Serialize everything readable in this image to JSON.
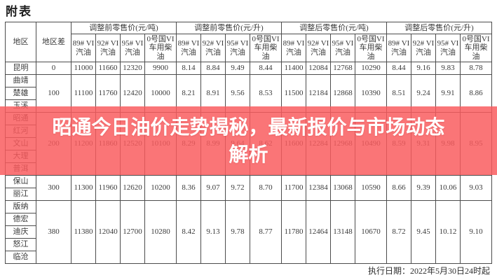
{
  "title": "附表",
  "banner": {
    "line1": "昭通今日油价走势揭秘，最新报价与市场动态",
    "line2": "解析",
    "background_color": "#f95d60",
    "text_color": "#ffffff"
  },
  "footer": {
    "execution_date": "执行日期：2022年5月30日24时起"
  },
  "table": {
    "region_header": "地区",
    "diff_header": "地区差",
    "group_headers": [
      "调整前零售价(元/吨)",
      "调整前零售价(元/升)",
      "调整后零售价(元/吨)",
      "调整后零售价(元/升)"
    ],
    "product_headers": [
      "89# VI汽油",
      "92# VI汽油",
      "95# VI汽油",
      "0号国VI 车用柴油"
    ],
    "row_groups": [
      {
        "regions": [
          "昆明"
        ],
        "diff": "0",
        "values": [
          "11000",
          "11660",
          "12320",
          "9900",
          "8.14",
          "8.84",
          "9.49",
          "8.44",
          "11400",
          "12084",
          "12768",
          "10290",
          "8.44",
          "9.16",
          "9.83",
          "8.78"
        ]
      },
      {
        "regions": [
          "曲靖",
          "楚雄",
          "玉溪"
        ],
        "diff": "100",
        "values": [
          "11100",
          "11760",
          "12420",
          "10000",
          "8.21",
          "8.91",
          "9.56",
          "8.53",
          "11500",
          "12184",
          "12868",
          "10390",
          "8.51",
          "9.24",
          "9.91",
          "8.86"
        ]
      },
      {
        "regions": [
          "昭通",
          "红河",
          "文山",
          "大理",
          "普洱"
        ],
        "diff": "200",
        "values": [
          "11200",
          "11860",
          "12520",
          "10100",
          "8.29",
          "8.99",
          "9.64",
          "8.62",
          "11600",
          "12284",
          "12968",
          "10490",
          "8.59",
          "9.31",
          "9.98",
          "8.95"
        ]
      },
      {
        "regions": [
          "保山",
          "丽江"
        ],
        "diff": "300",
        "values": [
          "11300",
          "11960",
          "12620",
          "10200",
          "8.36",
          "9.07",
          "9.72",
          "8.70",
          "11700",
          "12384",
          "13068",
          "10590",
          "8.66",
          "9.39",
          "10.06",
          "9.03"
        ]
      },
      {
        "regions": [
          "版纳",
          "德宏",
          "迪庆",
          "怒江",
          "临沧"
        ],
        "diff": "380",
        "values": [
          "11380",
          "12040",
          "12700",
          "10280",
          "8.42",
          "9.13",
          "9.78",
          "8.77",
          "11780",
          "12464",
          "13148",
          "10670",
          "8.72",
          "9.45",
          "10.12",
          "9.10"
        ]
      }
    ]
  }
}
